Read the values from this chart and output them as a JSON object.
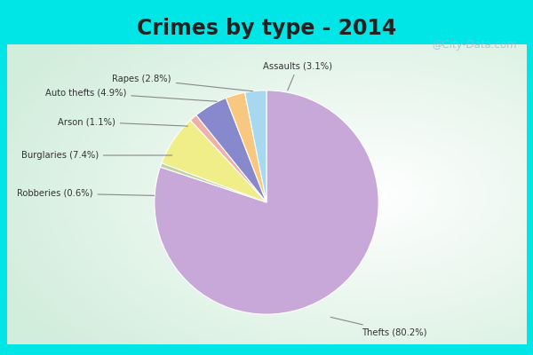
{
  "title": "Crimes by type - 2014",
  "title_fontsize": 17,
  "title_fontweight": "bold",
  "slices": [
    {
      "label": "Thefts",
      "pct": 80.2,
      "color": "#C8A8D8"
    },
    {
      "label": "Robberies",
      "pct": 0.6,
      "color": "#BED4A0"
    },
    {
      "label": "Burglaries",
      "pct": 7.4,
      "color": "#F0EE88"
    },
    {
      "label": "Arson",
      "pct": 1.1,
      "color": "#EEB0A8"
    },
    {
      "label": "Auto thefts",
      "pct": 4.9,
      "color": "#8888CC"
    },
    {
      "label": "Rapes",
      "pct": 2.8,
      "color": "#F8C880"
    },
    {
      "label": "Assaults",
      "pct": 3.1,
      "color": "#A8D8F0"
    }
  ],
  "bg_top_color": "#00E5E5",
  "bg_main_color": "#D4ECD8",
  "bg_fade_color": "#FFFFFF",
  "watermark": "@City-Data.com",
  "title_color": "#222222"
}
